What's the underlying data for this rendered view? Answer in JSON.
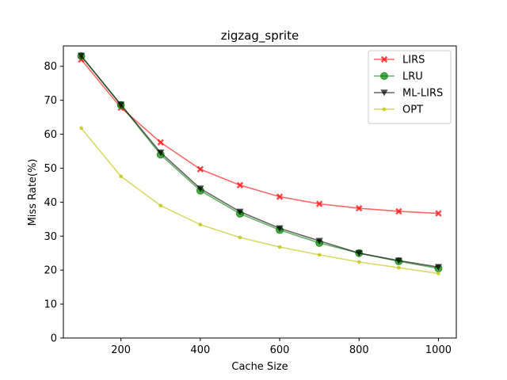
{
  "chart_data": {
    "type": "line",
    "title": "zigzag_sprite",
    "xlabel": "Cache Size",
    "ylabel": "Miss Rate(%)",
    "xlim": [
      55,
      1045
    ],
    "ylim": [
      0,
      86
    ],
    "xticks": [
      200,
      400,
      600,
      800,
      1000
    ],
    "yticks": [
      0,
      10,
      20,
      30,
      40,
      50,
      60,
      70,
      80
    ],
    "grid": false,
    "legend_position": "top-right",
    "x": [
      100,
      200,
      300,
      400,
      500,
      600,
      700,
      800,
      900,
      1000
    ],
    "series": [
      {
        "name": "LIRS",
        "color": "#ff0000",
        "marker": "X",
        "values": [
          82.0,
          67.8,
          57.6,
          49.7,
          45.0,
          41.6,
          39.5,
          38.2,
          37.3,
          36.7
        ]
      },
      {
        "name": "LRU",
        "color": "#008000",
        "marker": "circle",
        "values": [
          83.0,
          68.6,
          54.0,
          43.4,
          36.6,
          31.8,
          28.0,
          25.0,
          22.6,
          20.5
        ]
      },
      {
        "name": "ML-LIRS",
        "color": "#000000",
        "marker": "triangle-down",
        "values": [
          83.1,
          68.7,
          54.6,
          44.0,
          37.2,
          32.3,
          28.6,
          25.0,
          22.8,
          20.9
        ]
      },
      {
        "name": "OPT",
        "color": "#bfbf00",
        "marker": "dot",
        "values": [
          61.8,
          47.6,
          39.0,
          33.4,
          29.6,
          26.8,
          24.5,
          22.4,
          20.7,
          19.0
        ]
      }
    ]
  }
}
